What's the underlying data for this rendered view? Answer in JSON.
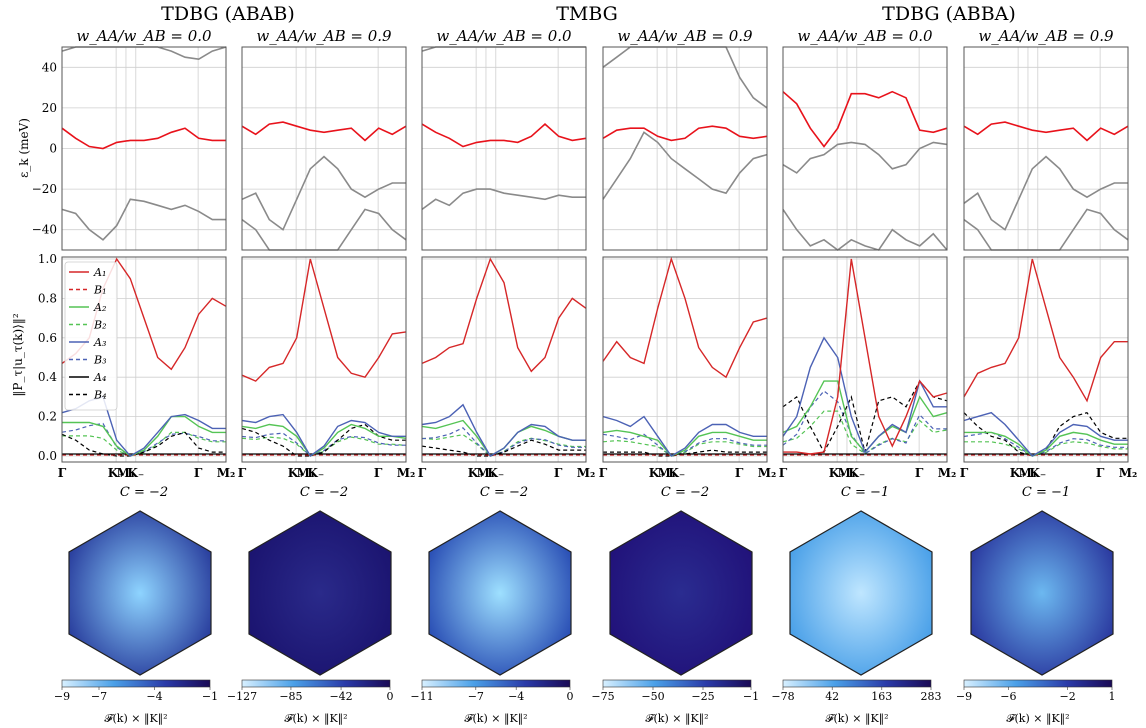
{
  "group_titles": [
    "TDBG (ABAB)",
    "TMBG",
    "TDBG (ABBA)"
  ],
  "y_label_top": "ε_k (meV)",
  "y_label_mid": "‖P_τ|u_τ(k)⟩‖²",
  "colorbar_label": "𝓕(k) × ‖K‖²",
  "band_ticks": [
    "40",
    "20",
    "0",
    "−20",
    "−40"
  ],
  "weight_ticks": [
    "1.0",
    "0.8",
    "0.6",
    "0.4",
    "0.2",
    "0.0"
  ],
  "x_ticks": [
    "Γ",
    "K₊",
    "M₁",
    "K₋",
    "Γ",
    "M₂"
  ],
  "legend": [
    {
      "label": "A₁",
      "color": "#d62728",
      "dash": false
    },
    {
      "label": "B₁",
      "color": "#d62728",
      "dash": true
    },
    {
      "label": "A₂",
      "color": "#55c455",
      "dash": false
    },
    {
      "label": "B₂",
      "color": "#55c455",
      "dash": true
    },
    {
      "label": "A₃",
      "color": "#4c62b5",
      "dash": false
    },
    {
      "label": "B₃",
      "color": "#4c62b5",
      "dash": true
    },
    {
      "label": "A₄",
      "color": "#000000",
      "dash": false
    },
    {
      "label": "B₄",
      "color": "#000000",
      "dash": true
    }
  ],
  "colors": {
    "flat_band": "#e8121b",
    "other_band": "#8a8a8a",
    "grid": "#cfcfcf"
  },
  "chart_data": [
    {
      "type": "line",
      "panel_title": "w_AA/w_AB = 0.0",
      "group": "TDBG (ABAB)",
      "chern": "C = −2",
      "colorbar": {
        "ticks": [
          "−9",
          "−7",
          "−4",
          "−1"
        ],
        "min": -9,
        "max": -1
      },
      "flat_band": [
        10,
        5,
        1,
        0,
        3,
        4,
        4,
        5,
        8,
        10,
        5,
        4,
        4
      ],
      "other_bands": [
        [
          -30,
          -32,
          -40,
          -45,
          -38,
          -25,
          -26,
          -28,
          -30,
          -28,
          -31,
          -35,
          -35
        ],
        [
          48,
          50,
          55,
          55,
          55,
          55,
          55,
          55,
          48,
          45,
          44,
          48,
          50
        ]
      ],
      "weights": {
        "A1": [
          0.47,
          0.52,
          0.6,
          0.85,
          1.0,
          0.9,
          0.7,
          0.5,
          0.44,
          0.55,
          0.72,
          0.8,
          0.76
        ],
        "A2": [
          0.17,
          0.17,
          0.17,
          0.15,
          0.05,
          0.0,
          0.03,
          0.1,
          0.2,
          0.2,
          0.15,
          0.12,
          0.12
        ],
        "A3": [
          0.22,
          0.24,
          0.28,
          0.3,
          0.08,
          0.0,
          0.04,
          0.12,
          0.2,
          0.21,
          0.18,
          0.14,
          0.14
        ],
        "B4": [
          0.11,
          0.08,
          0.03,
          0.01,
          0.0,
          0.0,
          0.02,
          0.05,
          0.1,
          0.12,
          0.04,
          0.02,
          0.02
        ]
      }
    },
    {
      "type": "line",
      "panel_title": "w_AA/w_AB = 0.9",
      "group": "TDBG (ABAB)",
      "chern": "C = −2",
      "colorbar": {
        "ticks": [
          "−127",
          "−85",
          "−42",
          "0"
        ],
        "min": -127,
        "max": 0
      },
      "flat_band": [
        11,
        7,
        12,
        13,
        11,
        9,
        8,
        9,
        10,
        4,
        10,
        7,
        11
      ],
      "other_bands": [
        [
          -25,
          -22,
          -35,
          -40,
          -25,
          -10,
          -4,
          -10,
          -20,
          -24,
          -20,
          -17,
          -17
        ],
        [
          -35,
          -40,
          -50,
          -55,
          -55,
          -55,
          -55,
          -55,
          -40,
          -30,
          -32,
          -40,
          -45
        ]
      ],
      "weights": {
        "A1": [
          0.41,
          0.38,
          0.45,
          0.47,
          0.6,
          1.0,
          0.75,
          0.5,
          0.42,
          0.4,
          0.5,
          0.62,
          0.63
        ],
        "A2": [
          0.15,
          0.14,
          0.16,
          0.15,
          0.1,
          0.0,
          0.04,
          0.12,
          0.16,
          0.14,
          0.1,
          0.1,
          0.09
        ],
        "A3": [
          0.18,
          0.17,
          0.2,
          0.21,
          0.12,
          0.0,
          0.05,
          0.15,
          0.18,
          0.17,
          0.12,
          0.1,
          0.1
        ],
        "B4": [
          0.14,
          0.12,
          0.08,
          0.05,
          0.0,
          0.0,
          0.02,
          0.08,
          0.14,
          0.16,
          0.1,
          0.08,
          0.08
        ]
      }
    },
    {
      "type": "line",
      "panel_title": "w_AA/w_AB = 0.0",
      "group": "TMBG",
      "chern": "C = −2",
      "colorbar": {
        "ticks": [
          "−11",
          "−7",
          "−4",
          "0"
        ],
        "min": -11,
        "max": 0
      },
      "flat_band": [
        12,
        8,
        5,
        1,
        3,
        4,
        4,
        3,
        6,
        12,
        6,
        4,
        5
      ],
      "other_bands": [
        [
          -30,
          -25,
          -28,
          -22,
          -20,
          -20,
          -22,
          -23,
          -24,
          -25,
          -23,
          -24,
          -24
        ],
        [
          48,
          50,
          55,
          55,
          55,
          55,
          55,
          55,
          55,
          55,
          55,
          55,
          55
        ]
      ],
      "weights": {
        "A1": [
          0.47,
          0.5,
          0.55,
          0.57,
          0.8,
          1.0,
          0.88,
          0.55,
          0.43,
          0.5,
          0.7,
          0.8,
          0.75
        ],
        "A2": [
          0.15,
          0.14,
          0.16,
          0.18,
          0.1,
          0.0,
          0.04,
          0.12,
          0.15,
          0.13,
          0.1,
          0.08,
          0.08
        ],
        "A3": [
          0.16,
          0.17,
          0.2,
          0.26,
          0.12,
          0.0,
          0.04,
          0.12,
          0.16,
          0.15,
          0.1,
          0.08,
          0.08
        ],
        "B4": [
          0.05,
          0.04,
          0.03,
          0.02,
          0.0,
          0.0,
          0.02,
          0.05,
          0.08,
          0.06,
          0.03,
          0.03,
          0.03
        ]
      }
    },
    {
      "type": "line",
      "panel_title": "w_AA/w_AB = 0.9",
      "group": "TMBG",
      "chern": "C = −2",
      "colorbar": {
        "ticks": [
          "−75",
          "−50",
          "−25",
          "−1"
        ],
        "min": -75,
        "max": -1
      },
      "flat_band": [
        5,
        9,
        10,
        10,
        6,
        4,
        5,
        10,
        11,
        10,
        6,
        5,
        6
      ],
      "other_bands": [
        [
          -25,
          -15,
          -5,
          8,
          3,
          -5,
          -10,
          -15,
          -20,
          -22,
          -12,
          -5,
          -3
        ],
        [
          40,
          45,
          55,
          55,
          55,
          55,
          55,
          55,
          55,
          55,
          35,
          25,
          20
        ]
      ],
      "weights": {
        "A1": [
          0.48,
          0.58,
          0.5,
          0.47,
          0.75,
          1.0,
          0.8,
          0.55,
          0.45,
          0.4,
          0.55,
          0.68,
          0.7
        ],
        "A2": [
          0.12,
          0.13,
          0.12,
          0.1,
          0.08,
          0.0,
          0.03,
          0.1,
          0.12,
          0.12,
          0.1,
          0.08,
          0.08
        ],
        "A3": [
          0.2,
          0.18,
          0.15,
          0.2,
          0.1,
          0.0,
          0.04,
          0.12,
          0.16,
          0.16,
          0.12,
          0.1,
          0.1
        ],
        "B4": [
          0.02,
          0.02,
          0.02,
          0.02,
          0.0,
          0.0,
          0.01,
          0.02,
          0.03,
          0.02,
          0.02,
          0.02,
          0.02
        ]
      }
    },
    {
      "type": "line",
      "panel_title": "w_AA/w_AB = 0.0",
      "group": "TDBG (ABBA)",
      "chern": "C = −1",
      "colorbar": {
        "ticks": [
          "−78",
          "42",
          "163",
          "283"
        ],
        "min": -78,
        "max": 283
      },
      "flat_band": [
        28,
        22,
        10,
        1,
        10,
        27,
        27,
        25,
        28,
        25,
        9,
        8,
        10
      ],
      "other_bands": [
        [
          -8,
          -12,
          -5,
          -3,
          2,
          3,
          2,
          -3,
          -10,
          -8,
          0,
          3,
          2
        ],
        [
          -30,
          -40,
          -48,
          -45,
          -50,
          -45,
          -48,
          -50,
          -40,
          -45,
          -48,
          -42,
          -50
        ]
      ],
      "weights": {
        "A1": [
          0.02,
          0.02,
          0.01,
          0.02,
          0.3,
          1.0,
          0.6,
          0.2,
          0.05,
          0.2,
          0.38,
          0.3,
          0.32
        ],
        "A2": [
          0.12,
          0.15,
          0.25,
          0.38,
          0.38,
          0.1,
          0.02,
          0.1,
          0.15,
          0.12,
          0.3,
          0.2,
          0.22
        ],
        "A3": [
          0.1,
          0.2,
          0.45,
          0.6,
          0.5,
          0.2,
          0.02,
          0.1,
          0.16,
          0.12,
          0.38,
          0.25,
          0.25
        ],
        "B4": [
          0.25,
          0.3,
          0.15,
          0.02,
          0.15,
          0.3,
          0.02,
          0.28,
          0.3,
          0.25,
          0.38,
          0.3,
          0.28
        ]
      }
    },
    {
      "type": "line",
      "panel_title": "w_AA/w_AB = 0.9",
      "group": "TDBG (ABBA)",
      "chern": "C = −1",
      "colorbar": {
        "ticks": [
          "−9",
          "−6",
          "−2",
          "1"
        ],
        "min": -9,
        "max": 1
      },
      "flat_band": [
        11,
        7,
        12,
        13,
        11,
        9,
        8,
        9,
        10,
        4,
        10,
        7,
        11
      ],
      "other_bands": [
        [
          -27,
          -22,
          -35,
          -40,
          -25,
          -10,
          -4,
          -10,
          -20,
          -24,
          -20,
          -17,
          -17
        ],
        [
          -35,
          -40,
          -50,
          -55,
          -55,
          -55,
          -55,
          -55,
          -40,
          -30,
          -32,
          -40,
          -45
        ]
      ],
      "weights": {
        "A1": [
          0.3,
          0.42,
          0.45,
          0.47,
          0.6,
          1.0,
          0.75,
          0.5,
          0.4,
          0.28,
          0.5,
          0.58,
          0.58
        ],
        "A2": [
          0.12,
          0.12,
          0.12,
          0.1,
          0.06,
          0.0,
          0.03,
          0.1,
          0.12,
          0.11,
          0.08,
          0.06,
          0.06
        ],
        "A3": [
          0.18,
          0.2,
          0.22,
          0.16,
          0.08,
          0.0,
          0.04,
          0.12,
          0.16,
          0.15,
          0.1,
          0.08,
          0.08
        ],
        "B4": [
          0.22,
          0.15,
          0.1,
          0.08,
          0.02,
          0.0,
          0.03,
          0.15,
          0.2,
          0.22,
          0.12,
          0.09,
          0.09
        ]
      }
    }
  ]
}
